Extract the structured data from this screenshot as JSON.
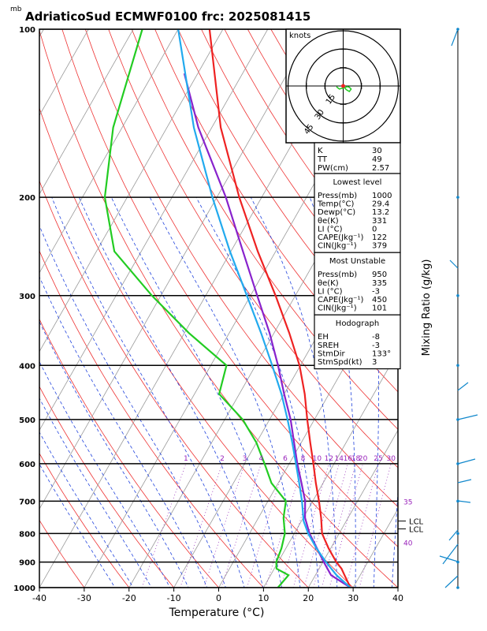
{
  "title": "AdriaticoSud ECMWF0100 frc: 2025081415",
  "chart_data": {
    "type": "skew-t",
    "title": "AdriaticoSud ECMWF0100 frc: 2025081415",
    "p_unit": "mb",
    "xlabel": "Temperature (°C)",
    "right_label": "Mixing Ratio (g/kg)",
    "xlim": [
      -40,
      40
    ],
    "ylim_p": [
      1000,
      100
    ],
    "xticks": [
      "-40",
      "-30",
      "-20",
      "-10",
      "0",
      "10",
      "20",
      "30",
      "40"
    ],
    "p_levels": [
      "100",
      "200",
      "300",
      "400",
      "500",
      "600",
      "700",
      "800",
      "900",
      "1000"
    ],
    "mixing_ratio_labels": [
      "1",
      "2",
      "3",
      "4",
      "6",
      "8",
      "10",
      "12",
      "14",
      "16",
      "18",
      "20",
      "25",
      "30"
    ],
    "theta_labels_right": [
      "35",
      "40"
    ],
    "lcl_labels": [
      "LCL",
      "LCL"
    ],
    "series": [
      {
        "name": "",
        "color": "#ee2222",
        "p": [
          1000,
          950,
          925,
          900,
          850,
          800,
          750,
          700,
          650,
          600,
          550,
          500,
          450,
          400,
          350,
          300,
          250,
          200,
          150,
          100
        ],
        "t": [
          29.4,
          26.5,
          25,
          23,
          19.5,
          16.2,
          14,
          11.4,
          8.4,
          5.4,
          2,
          -1.6,
          -5.4,
          -10.2,
          -16.6,
          -24.4,
          -34,
          -45,
          -58,
          -73
        ]
      },
      {
        "name": "",
        "color": "#22cc22",
        "p": [
          1000,
          950,
          925,
          900,
          850,
          800,
          750,
          700,
          650,
          600,
          550,
          500,
          450,
          400,
          350,
          300,
          250,
          200,
          150,
          100
        ],
        "t": [
          13.2,
          14,
          10.5,
          9.6,
          9,
          7.9,
          5.6,
          4,
          -1.5,
          -5.5,
          -10,
          -16,
          -24.5,
          -26.5,
          -39,
          -52,
          -66,
          -75,
          -82,
          -88
        ]
      },
      {
        "name": "",
        "color": "#8822cc",
        "p": [
          1000,
          950,
          900,
          850,
          800,
          750,
          700,
          650,
          600,
          550,
          500,
          450,
          400,
          350,
          300,
          250,
          200,
          150,
          120
        ],
        "t": [
          29.4,
          23.5,
          20.2,
          16.9,
          13.4,
          10.4,
          8.3,
          5.2,
          1.8,
          -1.6,
          -5.3,
          -10,
          -15,
          -21,
          -28.5,
          -37.3,
          -48,
          -63,
          -73
        ]
      },
      {
        "name": "",
        "color": "#22aaee",
        "p": [
          1000,
          950,
          900,
          850,
          800,
          760,
          700,
          650,
          600,
          550,
          500,
          450,
          400,
          350,
          300,
          250,
          200,
          150,
          100
        ],
        "t": [
          29.4,
          24.7,
          20.7,
          16.8,
          13.1,
          10.5,
          7.6,
          4.7,
          1.5,
          -2,
          -6,
          -10.6,
          -16.3,
          -22.9,
          -30.8,
          -40.2,
          -51,
          -64,
          -80
        ]
      }
    ],
    "indices": {
      "K": "30",
      "TT": "49",
      "PW(cm)": "2.57"
    },
    "lowest_level": {
      "header": "Lowest level",
      "rows": [
        [
          "Press(mb)",
          "1000"
        ],
        [
          "Temp(°C)",
          "29.4"
        ],
        [
          "Dewp(°C)",
          "13.2"
        ],
        [
          "θe(K)",
          "331"
        ],
        [
          "LI (°C)",
          "0"
        ],
        [
          "CAPE(Jkg⁻¹)",
          "122"
        ],
        [
          "CIN(Jkg⁻¹)",
          "379"
        ]
      ]
    },
    "most_unstable": {
      "header": "Most Unstable",
      "rows": [
        [
          "Press(mb)",
          "950"
        ],
        [
          "θe(K)",
          "335"
        ],
        [
          "LI (°C)",
          "-3"
        ],
        [
          "CAPE(Jkg⁻¹)",
          "450"
        ],
        [
          "CIN(Jkg⁻¹)",
          "101"
        ]
      ]
    },
    "hodograph_table": {
      "header": "Hodograph",
      "rows": [
        [
          "EH",
          "-8"
        ],
        [
          "SREH",
          "-3"
        ],
        [
          "StmDir",
          "133°"
        ],
        [
          "StmSpd(kt)",
          "3"
        ]
      ]
    },
    "hodograph": {
      "unit_label": "knots",
      "ring_labels": [
        "15",
        "30",
        "45"
      ],
      "u": [
        0,
        2.5,
        5,
        6.5,
        5,
        3,
        1.5,
        -1.5,
        -3,
        -4.5,
        -5.5
      ],
      "v": [
        0,
        -3,
        -4.5,
        -2.5,
        -1,
        -0.5,
        -1.5,
        -2,
        -2.5,
        -1.5,
        -0.5
      ]
    }
  }
}
